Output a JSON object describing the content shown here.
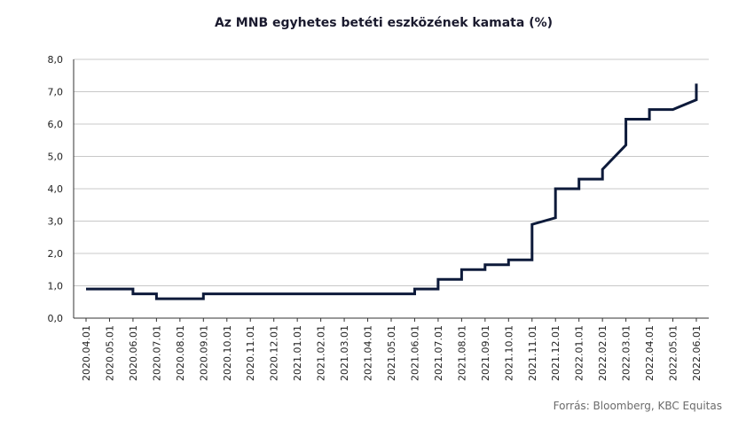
{
  "chart_data": {
    "type": "line",
    "step": true,
    "title": "Az MNB egyhetes betéti eszközének kamata (%)",
    "xlabel": "",
    "ylabel": "",
    "ylim": [
      0,
      8
    ],
    "yticks": [
      "0,0",
      "1,0",
      "2,0",
      "3,0",
      "4,0",
      "5,0",
      "6,0",
      "7,0",
      "8,0"
    ],
    "categories": [
      "2020.04.01",
      "2020.05.01",
      "2020.06.01",
      "2020.07.01",
      "2020.08.01",
      "2020.09.01",
      "2020.10.01",
      "2020.11.01",
      "2020.12.01",
      "2021.01.01",
      "2021.02.01",
      "2021.03.01",
      "2021.04.01",
      "2021.05.01",
      "2021.06.01",
      "2021.07.01",
      "2021.08.01",
      "2021.09.01",
      "2021.10.01",
      "2021.11.01",
      "2021.12.01",
      "2022.01.01",
      "2022.02.01",
      "2022.03.01",
      "2022.04.01",
      "2022.05.01",
      "2022.06.01"
    ],
    "grid": true,
    "legend": "none",
    "color": "#0d1a3a",
    "series": [
      {
        "points": [
          [
            0,
            0.9
          ],
          [
            2,
            0.9
          ],
          [
            2,
            0.75
          ],
          [
            3,
            0.75
          ],
          [
            3,
            0.6
          ],
          [
            5,
            0.6
          ],
          [
            5,
            0.75
          ],
          [
            14,
            0.75
          ],
          [
            14,
            0.9
          ],
          [
            15,
            0.9
          ],
          [
            15,
            1.2
          ],
          [
            16,
            1.2
          ],
          [
            16,
            1.5
          ],
          [
            17,
            1.5
          ],
          [
            17,
            1.65
          ],
          [
            18,
            1.65
          ],
          [
            18,
            1.8
          ],
          [
            19,
            1.8
          ],
          [
            19,
            2.9
          ],
          [
            20,
            3.1
          ],
          [
            20,
            4.0
          ],
          [
            21,
            4.0
          ],
          [
            21,
            4.3
          ],
          [
            22,
            4.3
          ],
          [
            22,
            4.6
          ],
          [
            23,
            5.35
          ],
          [
            23,
            6.15
          ],
          [
            24,
            6.15
          ],
          [
            24,
            6.45
          ],
          [
            25,
            6.45
          ],
          [
            26,
            6.75
          ],
          [
            26,
            7.25
          ]
        ]
      }
    ]
  },
  "source": "Forrás: Bloomberg,  KBC Equitas"
}
